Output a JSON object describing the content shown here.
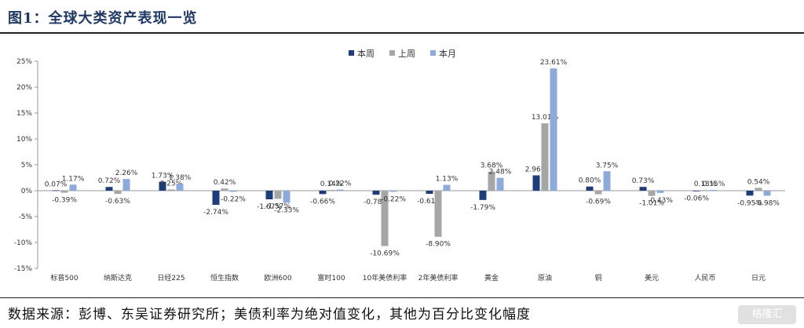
{
  "header": {
    "title": "图1：全球大类资产表现一览"
  },
  "footer": {
    "source": "数据来源：彭博、东吴证券研究所；美债利率为绝对值变化，其他为百分比变化幅度"
  },
  "watermark": {
    "text": "格隆汇"
  },
  "chart_data": {
    "type": "bar",
    "categories": [
      "标普500",
      "纳斯达克",
      "日经225",
      "恒生指数",
      "欧洲600",
      "富时100",
      "10年美债利率",
      "2年美债利率",
      "黄金",
      "原油",
      "铜",
      "美元",
      "人民币",
      "日元"
    ],
    "series": [
      {
        "name": "本周",
        "color": "#1f3d7a",
        "values": [
          0.07,
          0.72,
          1.73,
          -2.74,
          -1.67,
          -0.66,
          -0.78,
          -0.61,
          -1.79,
          2.96,
          0.8,
          0.73,
          -0.06,
          -0.95
        ],
        "labels": [
          "0.07%",
          "0.72%",
          "1.73%",
          "-2.74%",
          "-1.67%",
          "-0.66%",
          "-0.78%",
          "-0.61%",
          "-1.79%",
          "2.96%",
          "0.80%",
          "0.73%",
          "-0.06%",
          "-0.95%"
        ]
      },
      {
        "name": "上周",
        "color": "#a6a6a6",
        "values": [
          -0.39,
          -0.63,
          0.25,
          0.42,
          -1.57,
          0.14,
          -10.69,
          -8.9,
          3.68,
          13.01,
          -0.69,
          -1.01,
          0.13,
          0.54
        ],
        "labels": [
          "-0.39%",
          "-0.63%",
          "0.25%",
          "0.42%",
          "-1.57%",
          "0.14%",
          "-10.69%",
          "-8.90%",
          "3.68%",
          "13.01%",
          "-0.69%",
          "-1.01%",
          "0.13%",
          "0.54%"
        ]
      },
      {
        "name": "本月",
        "color": "#8eaadb",
        "values": [
          1.17,
          2.26,
          1.38,
          -0.22,
          -2.33,
          0.22,
          -0.22,
          1.13,
          2.48,
          23.61,
          3.75,
          -0.43,
          0.15,
          -0.98
        ],
        "labels": [
          "1.17%",
          "2.26%",
          "1.38%",
          "-0.22%",
          "-2.33%",
          "0.22%",
          "-0.22%",
          "1.13%",
          "2.48%",
          "23.61%",
          "3.75%",
          "-0.43%",
          "0.15%",
          "-0.98%"
        ]
      }
    ],
    "yticks": [
      "25%",
      "20%",
      "15%",
      "10%",
      "5%",
      "0%",
      "-5%",
      "-10%",
      "-15%"
    ],
    "ylim": [
      -15,
      25
    ],
    "legend_position": "top-center",
    "grid": false
  }
}
